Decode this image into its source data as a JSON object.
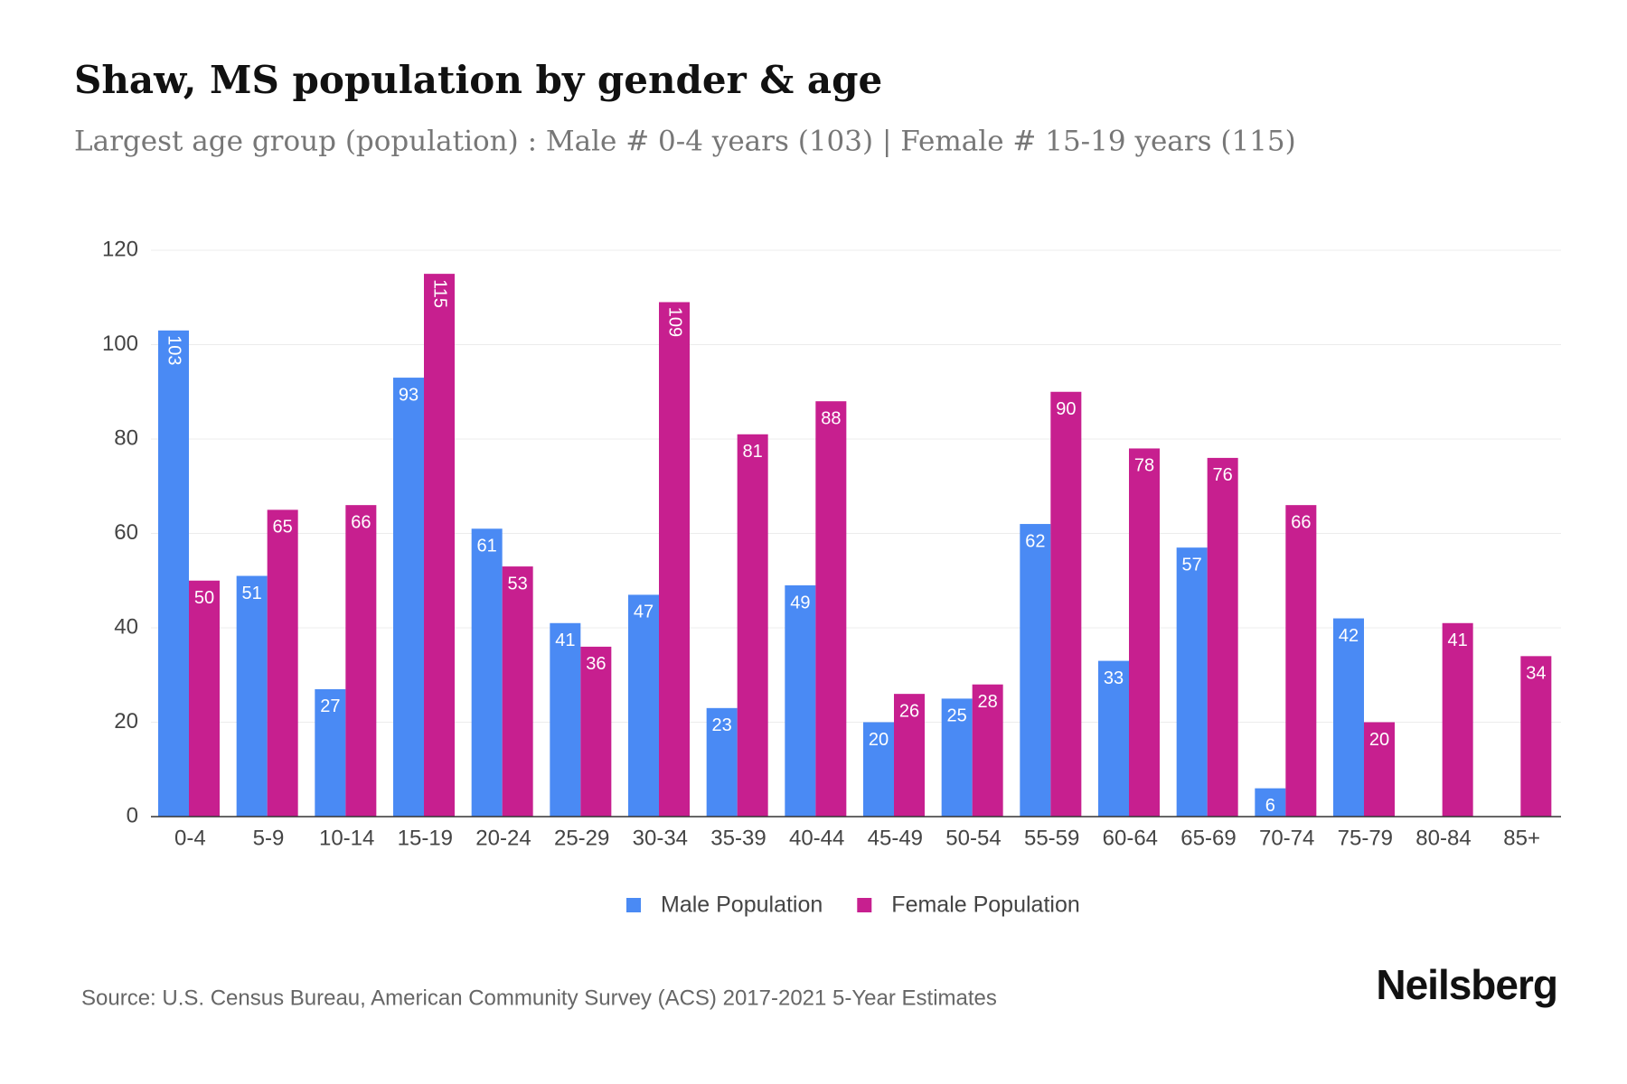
{
  "chart_data": {
    "type": "bar",
    "title": "Shaw, MS population by gender & age",
    "subtitle": "Largest age group (population) : Male # 0-4 years (103) | Female # 15-19 years (115)",
    "categories": [
      "0-4",
      "5-9",
      "10-14",
      "15-19",
      "20-24",
      "25-29",
      "30-34",
      "35-39",
      "40-44",
      "45-49",
      "50-54",
      "55-59",
      "60-64",
      "65-69",
      "70-74",
      "75-79",
      "80-84",
      "85+"
    ],
    "series": [
      {
        "name": "Male Population",
        "color": "#4a8af4",
        "values": [
          103,
          51,
          27,
          93,
          61,
          41,
          47,
          23,
          49,
          20,
          25,
          62,
          33,
          57,
          6,
          42,
          null,
          null
        ]
      },
      {
        "name": "Female Population",
        "color": "#c71f8f",
        "values": [
          50,
          65,
          66,
          115,
          53,
          36,
          109,
          81,
          88,
          26,
          28,
          90,
          78,
          76,
          66,
          20,
          41,
          34
        ]
      }
    ],
    "ylim": [
      0,
      120
    ],
    "yticks": [
      0,
      20,
      40,
      60,
      80,
      100,
      120
    ],
    "grid": true,
    "source": "Source: U.S. Census Bureau, American Community Survey (ACS) 2017-2021 5-Year Estimates",
    "brand": "Neilsberg"
  }
}
